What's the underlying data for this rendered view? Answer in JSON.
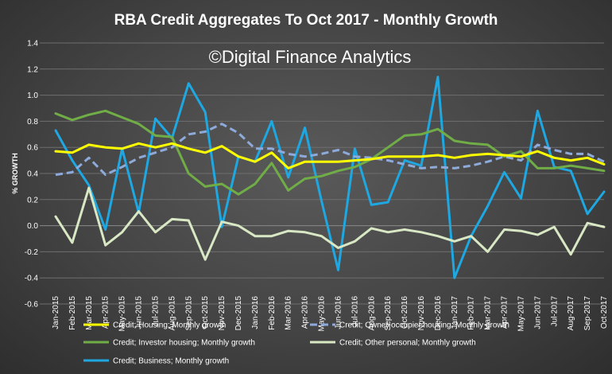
{
  "chart_data": {
    "type": "line",
    "title": "RBA Credit Aggregates To Oct 2017 - Monthly Growth",
    "watermark": "©Digital Finance Analytics",
    "xlabel": "",
    "ylabel": "% GROWTH",
    "ylim": [
      -0.6,
      1.4
    ],
    "yticks": [
      "-0.6",
      "-0.4",
      "-0.2",
      "0.0",
      "0.2",
      "0.4",
      "0.6",
      "0.8",
      "1.0",
      "1.2",
      "1.4"
    ],
    "grid": true,
    "legend_position": "bottom",
    "categories": [
      "Jan-2015",
      "Feb-2015",
      "Mar-2015",
      "Apr-2015",
      "May-2015",
      "Jun-2015",
      "Jul-2015",
      "Aug-2015",
      "Sep-2015",
      "Oct-2015",
      "Nov-2015",
      "Dec-2015",
      "Jan-2016",
      "Feb-2016",
      "Mar-2016",
      "Apr-2016",
      "May-2016",
      "Jun-2016",
      "Jul-2016",
      "Aug-2016",
      "Sep-2016",
      "Oct-2016",
      "Nov-2016",
      "Dec-2016",
      "Jan-2017",
      "Feb-2017",
      "Mar-2017",
      "Apr-2017",
      "May-2017",
      "Jun-2017",
      "Jul-2017",
      "Aug-2017",
      "Sep-2017",
      "Oct-2017"
    ],
    "tick_labels": [
      "Jan-2015",
      "Feb-2015",
      "Mar-2015",
      "Apr-2015",
      "May-2015",
      "Jun-2015",
      "Jul-2015",
      "Aug-2015",
      "Sep-2015",
      "Oct-2015",
      "Nov-2015",
      "Dec-2015",
      "Jan-2016",
      "Feb-2016",
      "Mar-2016",
      "Apr-2016",
      "May-2016",
      "Jun-2016",
      "Jul-2016",
      "Aug-2016",
      "Sep-2016",
      "Oct-2016",
      "Nov-2016",
      "Dec-2016",
      "Jan-2017",
      "Feb-2017",
      "Mar-2017",
      "Apr-2017",
      "May-2017",
      "Jun-2017",
      "Jul-2017",
      "Aug-2017",
      "Sep-2017",
      "Oct-2017"
    ],
    "series": [
      {
        "name": "Credit; Housing; Monthly growth",
        "color": "#ffff00",
        "dash": false,
        "values": [
          0.57,
          0.56,
          0.62,
          0.6,
          0.59,
          0.63,
          0.6,
          0.63,
          0.59,
          0.56,
          0.61,
          0.53,
          0.49,
          0.56,
          0.44,
          0.49,
          0.49,
          0.49,
          0.5,
          0.51,
          0.53,
          0.53,
          0.53,
          0.54,
          0.52,
          0.54,
          0.55,
          0.54,
          0.53,
          0.57,
          0.52,
          0.5,
          0.52,
          0.47
        ]
      },
      {
        "name": "Credit; Owner-occupier housing; Monthly growth",
        "color": "#8eaadb",
        "dash": true,
        "values": [
          0.39,
          0.41,
          0.52,
          0.39,
          0.45,
          0.52,
          0.56,
          0.6,
          0.7,
          0.72,
          0.78,
          0.71,
          0.59,
          0.59,
          0.55,
          0.53,
          0.55,
          0.58,
          0.53,
          0.52,
          0.5,
          0.47,
          0.44,
          0.45,
          0.44,
          0.46,
          0.49,
          0.53,
          0.5,
          0.62,
          0.58,
          0.55,
          0.55,
          0.49
        ]
      },
      {
        "name": "Credit; Investor housing; Monthly growth",
        "color": "#70ad47",
        "dash": false,
        "values": [
          0.86,
          0.81,
          0.85,
          0.88,
          0.83,
          0.78,
          0.69,
          0.68,
          0.4,
          0.3,
          0.32,
          0.24,
          0.32,
          0.48,
          0.27,
          0.36,
          0.38,
          0.42,
          0.45,
          0.51,
          0.6,
          0.69,
          0.7,
          0.74,
          0.65,
          0.63,
          0.62,
          0.53,
          0.57,
          0.44,
          0.44,
          0.46,
          0.44,
          0.42
        ]
      },
      {
        "name": "Credit; Other personal; Monthly growth",
        "color": "#d9e8c4",
        "dash": false,
        "values": [
          0.07,
          -0.13,
          0.29,
          -0.15,
          -0.05,
          0.11,
          -0.05,
          0.05,
          0.04,
          -0.26,
          0.03,
          0.0,
          -0.08,
          -0.08,
          -0.04,
          -0.05,
          -0.08,
          -0.17,
          -0.12,
          -0.02,
          -0.05,
          -0.03,
          -0.05,
          -0.08,
          -0.12,
          -0.08,
          -0.2,
          -0.03,
          -0.04,
          -0.07,
          -0.01,
          -0.22,
          0.02,
          -0.01
        ]
      },
      {
        "name": "Credit; Business; Monthly growth",
        "color": "#1ea7e1",
        "dash": false,
        "values": [
          0.73,
          0.5,
          0.31,
          -0.03,
          0.59,
          0.1,
          0.82,
          0.67,
          1.09,
          0.87,
          -0.01,
          0.53,
          0.49,
          0.8,
          0.37,
          0.75,
          0.19,
          -0.34,
          0.59,
          0.16,
          0.18,
          0.5,
          0.46,
          1.14,
          -0.4,
          -0.08,
          0.15,
          0.41,
          0.21,
          0.88,
          0.45,
          0.42,
          0.09,
          0.26
        ]
      }
    ]
  }
}
